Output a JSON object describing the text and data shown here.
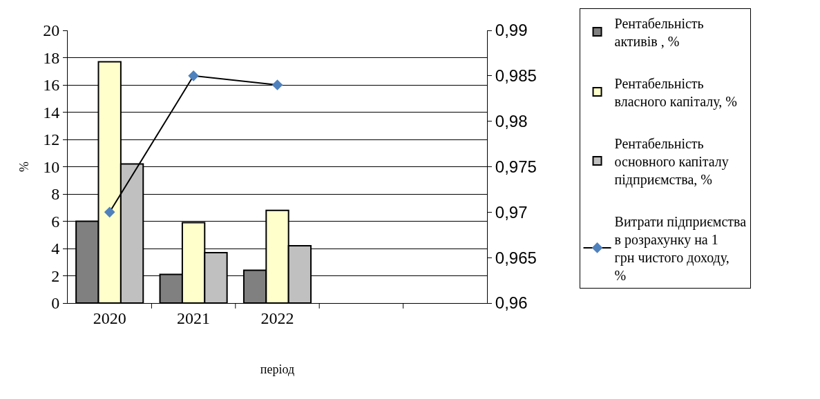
{
  "chart_data": {
    "type": "bar",
    "xlabel": "період",
    "ylabel": "%",
    "categories": [
      "2020",
      "2021",
      "2022",
      null,
      null
    ],
    "series": [
      {
        "name": "Рентабельність активів , %",
        "color": "#808080",
        "values": [
          6.0,
          2.1,
          2.4,
          null,
          null
        ]
      },
      {
        "name": "Рентабельність власного капіталу, %",
        "color": "#ffffcc",
        "values": [
          17.7,
          5.9,
          6.8,
          null,
          null
        ]
      },
      {
        "name": "Рентабельність основного капіталу підприємства, %",
        "color": "#c0c0c0",
        "values": [
          10.2,
          3.7,
          4.2,
          null,
          null
        ]
      },
      {
        "name": "Витрати підприємства в розрахунку на 1 грн чистого доходу, %",
        "type": "line",
        "axis": "y2",
        "color": "#4f81bd",
        "values": [
          0.97,
          0.985,
          0.984,
          null,
          null
        ]
      }
    ],
    "ylim": [
      0,
      20
    ],
    "yticks": [
      0,
      2,
      4,
      6,
      8,
      10,
      12,
      14,
      16,
      18,
      20
    ],
    "y2lim": [
      0.96,
      0.99
    ],
    "y2ticks": [
      {
        "value": 0.96,
        "label": "0,96"
      },
      {
        "value": 0.965,
        "label": "0,965"
      },
      {
        "value": 0.97,
        "label": "0,97"
      },
      {
        "value": 0.975,
        "label": "0,975"
      },
      {
        "value": 0.98,
        "label": "0,98"
      },
      {
        "value": 0.985,
        "label": "0,985"
      },
      {
        "value": 0.99,
        "label": "0,99"
      }
    ],
    "grid": "y",
    "legend": "right",
    "marker": "diamond"
  }
}
